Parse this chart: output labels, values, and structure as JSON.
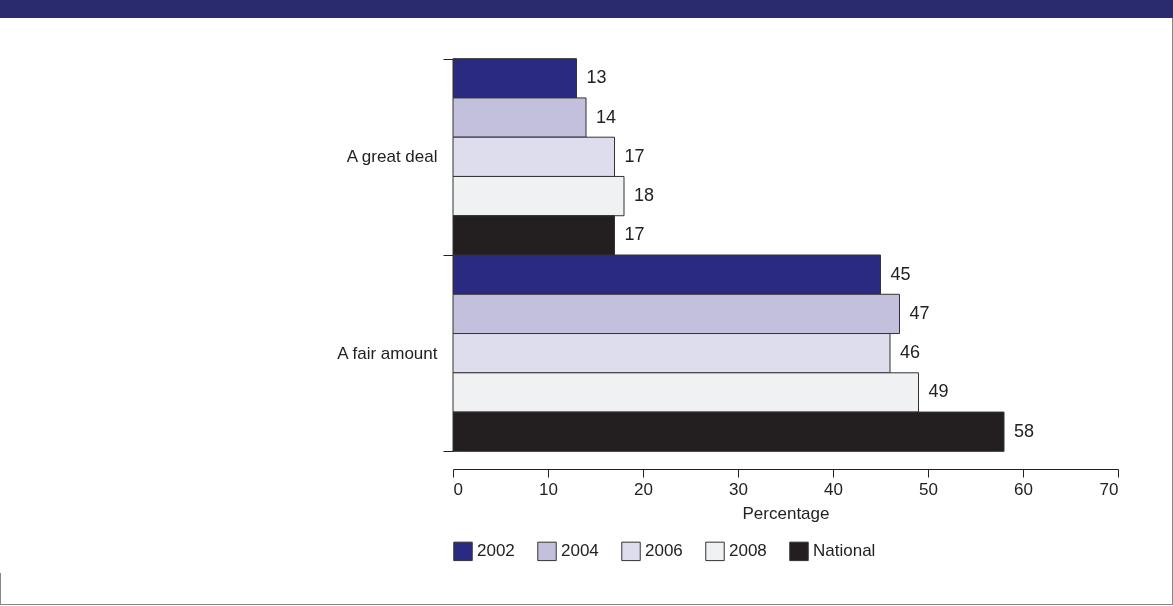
{
  "chart_data": {
    "type": "bar",
    "orientation": "horizontal",
    "categories": [
      "A great deal",
      "A fair amount"
    ],
    "series": [
      {
        "name": "2002",
        "color": "#2a2a82",
        "values": [
          13,
          45
        ]
      },
      {
        "name": "2004",
        "color": "#c3c0de",
        "values": [
          14,
          47
        ]
      },
      {
        "name": "2006",
        "color": "#dedded",
        "values": [
          17,
          46
        ]
      },
      {
        "name": "2008",
        "color": "#f0f1f2",
        "values": [
          18,
          49
        ]
      },
      {
        "name": "National",
        "color": "#231f20",
        "values": [
          17,
          58
        ]
      }
    ],
    "xlabel": "Percentage",
    "xlim": [
      0,
      70
    ],
    "xticks": [
      0,
      10,
      20,
      30,
      40,
      50,
      60,
      70
    ],
    "data_labels": true,
    "legend": "bottom",
    "grid": false
  }
}
